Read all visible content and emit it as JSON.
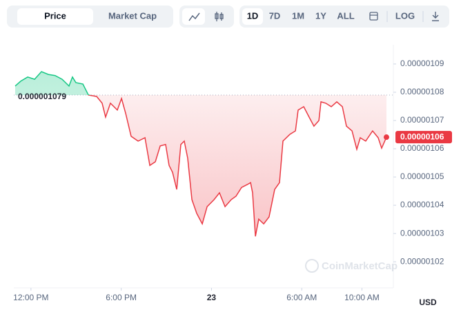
{
  "toolbar": {
    "tabs": [
      "Price",
      "Market Cap"
    ],
    "ranges": [
      "1D",
      "7D",
      "1M",
      "1Y",
      "ALL"
    ],
    "log": "LOG"
  },
  "chart_data": {
    "type": "line",
    "x": [
      10.95,
      11.32,
      11.78,
      12.24,
      12.7,
      13.16,
      13.61,
      14.07,
      14.53,
      14.76,
      14.99,
      15.45,
      15.82,
      16.37,
      16.73,
      16.96,
      17.28,
      17.74,
      18.02,
      18.3,
      18.66,
      19.12,
      19.58,
      19.9,
      20.27,
      20.59,
      20.95,
      21.18,
      21.41,
      21.69,
      21.96,
      22.19,
      22.42,
      22.7,
      23.02,
      23.39,
      23.71,
      24.17,
      24.53,
      24.9,
      25.31,
      25.63,
      26.0,
      26.37,
      26.6,
      26.73,
      26.92,
      27.14,
      27.47,
      27.83,
      28.2,
      28.52,
      28.75,
      29.21,
      29.58,
      29.76,
      30.13,
      30.49,
      30.81,
      31.14,
      31.28,
      31.6,
      31.96,
      32.33,
      32.7,
      32.97,
      33.34,
      33.66,
      33.89,
      34.25,
      34.71,
      35.08,
      35.31,
      35.63
    ],
    "series": [
      {
        "name": "Price",
        "color": "#ea3943",
        "up_color": "#16c784",
        "values": [
          1.0822e-06,
          1.0839e-06,
          1.0854e-06,
          1.0846e-06,
          1.0873e-06,
          1.0863e-06,
          1.0859e-06,
          1.0846e-06,
          1.0822e-06,
          1.0854e-06,
          1.0834e-06,
          1.0829e-06,
          1.079e-06,
          1.0785e-06,
          1.0761e-06,
          1.0712e-06,
          1.0761e-06,
          1.0737e-06,
          1.0778e-06,
          1.0724e-06,
          1.0644e-06,
          1.0627e-06,
          1.0639e-06,
          1.0541e-06,
          1.0554e-06,
          1.061e-06,
          1.0615e-06,
          1.0541e-06,
          1.0517e-06,
          1.0456e-06,
          1.0615e-06,
          1.0627e-06,
          1.0566e-06,
          1.042e-06,
          1.0371e-06,
          1.0334e-06,
          1.0395e-06,
          1.042e-06,
          1.0444e-06,
          1.0395e-06,
          1.042e-06,
          1.0432e-06,
          1.0463e-06,
          1.0473e-06,
          1.048e-06,
          1.0444e-06,
          1.029e-06,
          1.0351e-06,
          1.0334e-06,
          1.0359e-06,
          1.0456e-06,
          1.048e-06,
          1.0627e-06,
          1.0651e-06,
          1.0663e-06,
          1.0737e-06,
          1.0749e-06,
          1.0712e-06,
          1.068e-06,
          1.07e-06,
          1.0766e-06,
          1.0761e-06,
          1.0749e-06,
          1.0766e-06,
          1.0749e-06,
          1.068e-06,
          1.0663e-06,
          1.0598e-06,
          1.0639e-06,
          1.0627e-06,
          1.0663e-06,
          1.0639e-06,
          1.0602e-06,
          1.0641e-06
        ]
      }
    ],
    "xlim": [
      10.86,
      36.09
    ],
    "xticks": [
      {
        "value": 12,
        "label": "12:00 PM"
      },
      {
        "value": 18,
        "label": "6:00 PM"
      },
      {
        "value": 24,
        "label": "23"
      },
      {
        "value": 30,
        "label": "6:00 AM"
      },
      {
        "value": 34,
        "label": "10:00 AM"
      }
    ],
    "ylim": [
      1.0115e-06,
      1.0968e-06
    ],
    "yticks": [
      {
        "value": 1.02e-06,
        "label": "0.00000102"
      },
      {
        "value": 1.03e-06,
        "label": "0.00000103"
      },
      {
        "value": 1.04e-06,
        "label": "0.00000104"
      },
      {
        "value": 1.05e-06,
        "label": "0.00000105"
      },
      {
        "value": 1.06e-06,
        "label": "0.00000106"
      },
      {
        "value": 1.07e-06,
        "label": "0.00000107"
      },
      {
        "value": 1.08e-06,
        "label": "0.00000108"
      },
      {
        "value": 1.09e-06,
        "label": "0.00000109"
      }
    ],
    "reference": {
      "value": 1.079e-06,
      "label": "0.000001079"
    },
    "current_price": {
      "value": 1.0641e-06,
      "label": "0.00000106"
    },
    "currency": "USD",
    "watermark": "CoinMarketCap",
    "grid": false
  }
}
